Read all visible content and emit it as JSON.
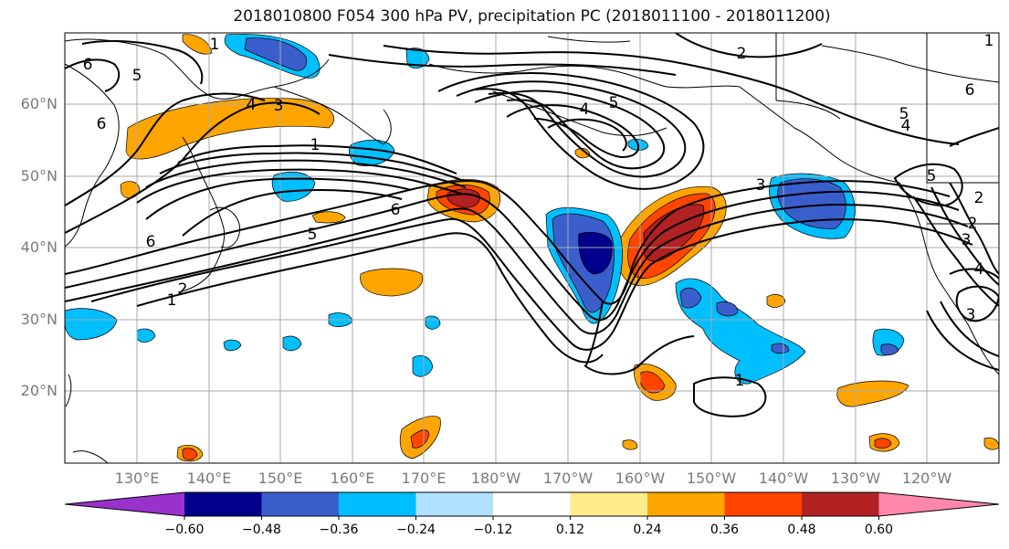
{
  "title": "2018010800 F054 300 hPa PV, precipitation PC (2018011100 - 2018011200)",
  "map": {
    "lat_labels": [
      "60°N",
      "50°N",
      "40°N",
      "30°N",
      "20°N"
    ],
    "lon_labels": [
      "130°E",
      "140°E",
      "150°E",
      "160°E",
      "170°E",
      "180°W",
      "170°W",
      "160°W",
      "150°W",
      "140°W",
      "130°W",
      "120°W"
    ],
    "contour_labels": [
      "1",
      "2",
      "3",
      "4",
      "5",
      "6",
      "1",
      "2",
      "3",
      "4",
      "5",
      "6",
      "1",
      "2",
      "3",
      "4",
      "5",
      "6",
      "1",
      "2",
      "3",
      "4",
      "5",
      "6",
      "6",
      "5",
      "1"
    ],
    "contour_label_values": [
      "1",
      "2",
      "3",
      "4",
      "5",
      "6"
    ]
  },
  "colorbar": {
    "tick_labels": [
      "−0.60",
      "−0.48",
      "−0.36",
      "−0.24",
      "−0.12",
      "0.12",
      "0.24",
      "0.36",
      "0.48",
      "0.60"
    ],
    "colors": [
      "#9932cc",
      "#00008b",
      "#3a5fcd",
      "#00bfff",
      "#b0e2ff",
      "#ffffff",
      "#ffec8b",
      "#ffa500",
      "#ff4500",
      "#b22222",
      "#ff88aa"
    ]
  }
}
